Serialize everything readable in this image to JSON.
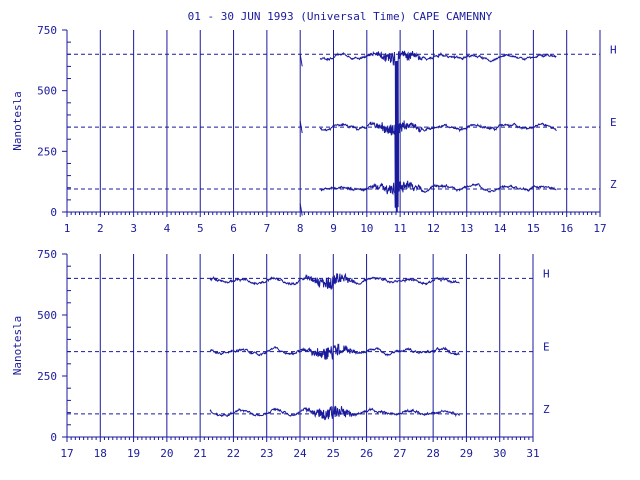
{
  "title": "01 - 30 JUN 1993 (Universal Time) CAPE CAMENNY",
  "colors": {
    "ink": "#1a1a9c",
    "background": "#ffffff"
  },
  "chart_data": [
    {
      "type": "line",
      "ylabel": "Nanotesla",
      "xlim": [
        1,
        17
      ],
      "ylim": [
        0,
        750
      ],
      "x_ticks": [
        "1",
        "2",
        "3",
        "4",
        "5",
        "6",
        "7",
        "8",
        "9",
        "10",
        "11",
        "12",
        "13",
        "14",
        "15",
        "16",
        "17"
      ],
      "y_ticks": [
        "0",
        "250",
        "500",
        "750"
      ],
      "reference_lines": [
        {
          "name": "H",
          "value": 650
        },
        {
          "name": "E",
          "value": 350
        },
        {
          "name": "Z",
          "value": 95
        }
      ],
      "data_start": 8.6,
      "data_end": 15.7,
      "series": [
        {
          "name": "H",
          "baseline": 640
        },
        {
          "name": "E",
          "baseline": 350
        },
        {
          "name": "Z",
          "baseline": 100
        }
      ],
      "features": [
        {
          "note": "short fragment near day 8.0",
          "x": 8.0,
          "values": [
            625,
            350,
            10
          ]
        },
        {
          "note": "storm sudden commencement",
          "x": 10.9,
          "range_min": 0,
          "range_max": 620
        }
      ]
    },
    {
      "type": "line",
      "ylabel": "Nanotesla",
      "xlim": [
        17,
        31
      ],
      "ylim": [
        0,
        750
      ],
      "x_ticks": [
        "17",
        "18",
        "19",
        "20",
        "21",
        "22",
        "23",
        "24",
        "25",
        "26",
        "27",
        "28",
        "29",
        "30",
        "31"
      ],
      "y_ticks": [
        "0",
        "250",
        "500",
        "750"
      ],
      "reference_lines": [
        {
          "name": "H",
          "value": 650
        },
        {
          "name": "E",
          "value": 350
        },
        {
          "name": "Z",
          "value": 95
        }
      ],
      "data_start": 21.3,
      "data_end": 28.8,
      "series": [
        {
          "name": "H",
          "baseline": 640
        },
        {
          "name": "E",
          "baseline": 350
        },
        {
          "name": "Z",
          "baseline": 100
        }
      ],
      "features": [
        {
          "note": "disturbed interval",
          "x": 24.9,
          "range_min": 490,
          "range_max": 735
        }
      ]
    }
  ]
}
